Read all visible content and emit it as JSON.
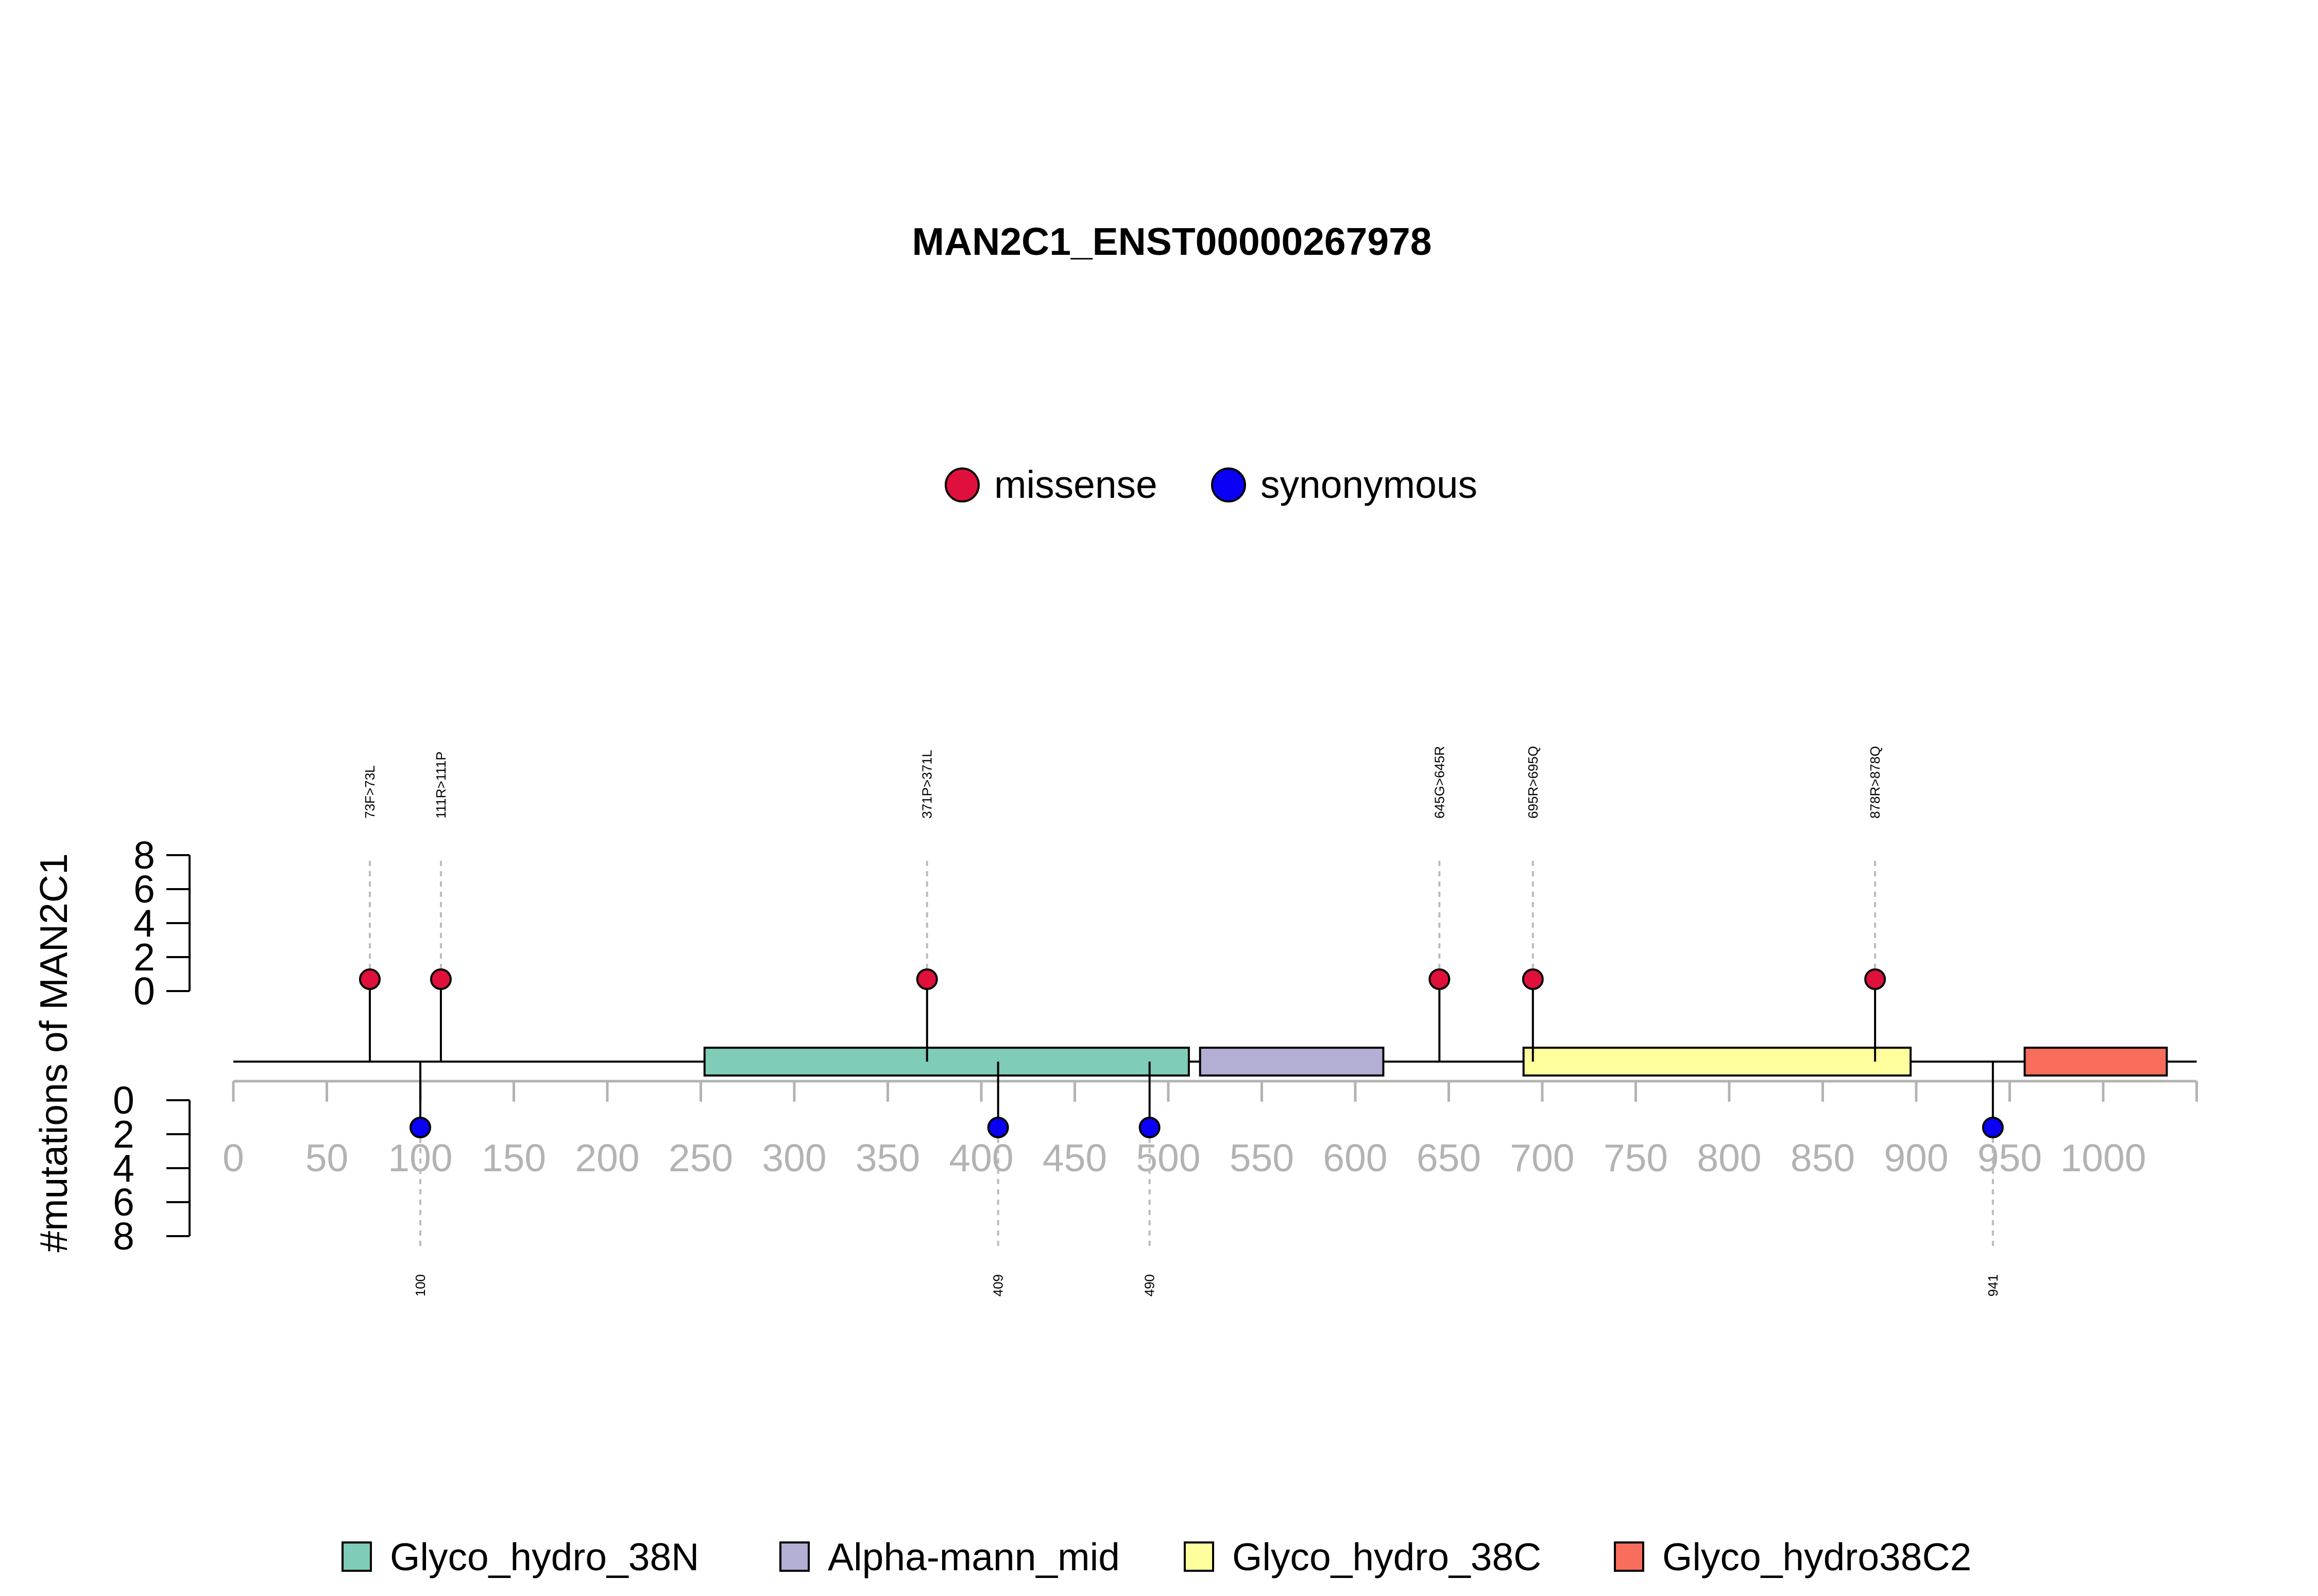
{
  "chart_data": {
    "type": "lollipop",
    "title": "MAN2C1_ENST00000267978",
    "ylabel": "#mutations of MAN2C1",
    "xlim": [
      0,
      1050
    ],
    "xticks": [
      0,
      50,
      100,
      150,
      200,
      250,
      300,
      350,
      400,
      450,
      500,
      550,
      600,
      650,
      700,
      750,
      800,
      850,
      900,
      950,
      1000
    ],
    "yticks": [
      0,
      2,
      4,
      6,
      8
    ],
    "legend": [
      {
        "name": "missense",
        "color": "#e0103c"
      },
      {
        "name": "synonymous",
        "color": "#0a00f5"
      }
    ],
    "domains": [
      {
        "name": "Glyco_hydro_38N",
        "start": 252,
        "end": 511,
        "color": "#7fccb8"
      },
      {
        "name": "Alpha-mann_mid",
        "start": 517,
        "end": 615,
        "color": "#b3aed4"
      },
      {
        "name": "Glyco_hydro_38C",
        "start": 690,
        "end": 897,
        "color": "#ffff9e"
      },
      {
        "name": "Glyco_hydro38C2",
        "start": 958,
        "end": 1034,
        "color": "#f86d5c"
      }
    ],
    "mutations_above": [
      {
        "label": "73F>73L",
        "pos": 73,
        "count": 1,
        "type": "missense"
      },
      {
        "label": "111R>111P",
        "pos": 111,
        "count": 1,
        "type": "missense"
      },
      {
        "label": "371P>371L",
        "pos": 371,
        "count": 1,
        "type": "missense"
      },
      {
        "label": "645G>645R",
        "pos": 645,
        "count": 1,
        "type": "missense"
      },
      {
        "label": "695R>695Q",
        "pos": 695,
        "count": 1,
        "type": "missense"
      },
      {
        "label": "878R>878Q",
        "pos": 878,
        "count": 1,
        "type": "missense"
      }
    ],
    "mutations_below": [
      {
        "label": "100",
        "pos": 100,
        "count": 1,
        "type": "synonymous"
      },
      {
        "label": "409",
        "pos": 409,
        "count": 1,
        "type": "synonymous"
      },
      {
        "label": "490",
        "pos": 490,
        "count": 1,
        "type": "synonymous"
      },
      {
        "label": "941",
        "pos": 941,
        "count": 1,
        "type": "synonymous"
      }
    ]
  }
}
